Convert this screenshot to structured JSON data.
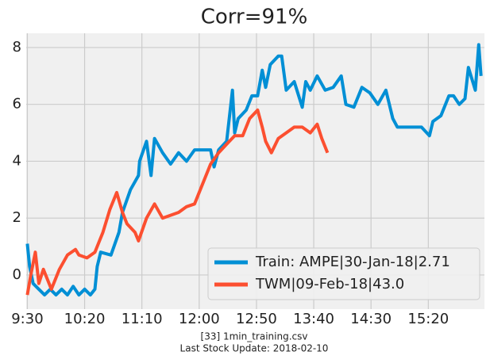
{
  "chart_data": {
    "type": "line",
    "title": "Corr=91%",
    "caption": [
      "[33] 1min_training.csv",
      "Last Stock Update: 2018-02-10"
    ],
    "xlim": [
      -1,
      399
    ],
    "ylim": [
      -1.2,
      8.5
    ],
    "xticks": [
      {
        "value": 0,
        "label": "9:30"
      },
      {
        "value": 50,
        "label": "10:20"
      },
      {
        "value": 100,
        "label": "11:10"
      },
      {
        "value": 150,
        "label": "12:00"
      },
      {
        "value": 200,
        "label": "12:50"
      },
      {
        "value": 250,
        "label": "13:40"
      },
      {
        "value": 300,
        "label": "14:30"
      },
      {
        "value": 350,
        "label": "15:20"
      }
    ],
    "yticks": [
      0,
      2,
      4,
      6,
      8
    ],
    "grid": true,
    "legend": "lower right",
    "series": [
      {
        "name": "Train: AMPE|30-Jan-18|2.71",
        "color": "#008fd5",
        "x": [
          0,
          2,
          5,
          10,
          15,
          20,
          25,
          30,
          35,
          40,
          45,
          50,
          55,
          59,
          61,
          64,
          73,
          80,
          83,
          90,
          97,
          98,
          104,
          108,
          111,
          118,
          125,
          132,
          139,
          146,
          153,
          160,
          163,
          167,
          174,
          179,
          181,
          184,
          191,
          196,
          201,
          205,
          208,
          212,
          219,
          222,
          226,
          233,
          240,
          243,
          247,
          253,
          260,
          267,
          274,
          278,
          285,
          292,
          299,
          306,
          313,
          319,
          323,
          330,
          337,
          344,
          351,
          354,
          361,
          368,
          372,
          377,
          382,
          385,
          391,
          394,
          396
        ],
        "values": [
          1.1,
          0.3,
          -0.3,
          -0.5,
          -0.7,
          -0.5,
          -0.7,
          -0.5,
          -0.7,
          -0.4,
          -0.7,
          -0.5,
          -0.7,
          -0.5,
          0.3,
          0.8,
          0.7,
          1.5,
          2.2,
          3.0,
          3.5,
          4.0,
          4.7,
          3.5,
          4.8,
          4.3,
          3.9,
          4.3,
          4.0,
          4.4,
          4.4,
          4.4,
          3.8,
          4.4,
          4.7,
          6.5,
          5.0,
          5.5,
          5.8,
          6.3,
          6.3,
          7.2,
          6.6,
          7.4,
          7.7,
          7.7,
          6.5,
          6.8,
          5.9,
          6.8,
          6.5,
          7.0,
          6.5,
          6.6,
          7.0,
          6.0,
          5.9,
          6.6,
          6.4,
          6.0,
          6.5,
          5.5,
          5.2,
          5.2,
          5.2,
          5.2,
          4.9,
          5.4,
          5.6,
          6.3,
          6.3,
          6.0,
          6.2,
          7.3,
          6.5,
          8.1,
          7.0
        ]
      },
      {
        "name": "TWM|09-Feb-18|43.0",
        "color": "#fc4f30",
        "x": [
          0,
          3,
          7,
          10,
          14,
          21,
          28,
          35,
          42,
          45,
          52,
          59,
          66,
          72,
          78,
          83,
          87,
          94,
          97,
          104,
          111,
          118,
          125,
          132,
          139,
          146,
          153,
          160,
          167,
          174,
          181,
          188,
          194,
          201,
          205,
          208,
          213,
          219,
          226,
          233,
          240,
          247,
          253,
          257,
          262
        ],
        "values": [
          -0.7,
          0.0,
          0.8,
          -0.3,
          0.2,
          -0.5,
          0.2,
          0.7,
          0.9,
          0.7,
          0.6,
          0.8,
          1.5,
          2.3,
          2.9,
          2.2,
          1.8,
          1.5,
          1.2,
          2.0,
          2.5,
          2.0,
          2.1,
          2.2,
          2.4,
          2.5,
          3.2,
          3.9,
          4.3,
          4.6,
          4.9,
          4.9,
          5.5,
          5.8,
          5.2,
          4.7,
          4.3,
          4.8,
          5.0,
          5.2,
          5.2,
          5.0,
          5.3,
          4.8,
          4.3
        ]
      }
    ]
  }
}
